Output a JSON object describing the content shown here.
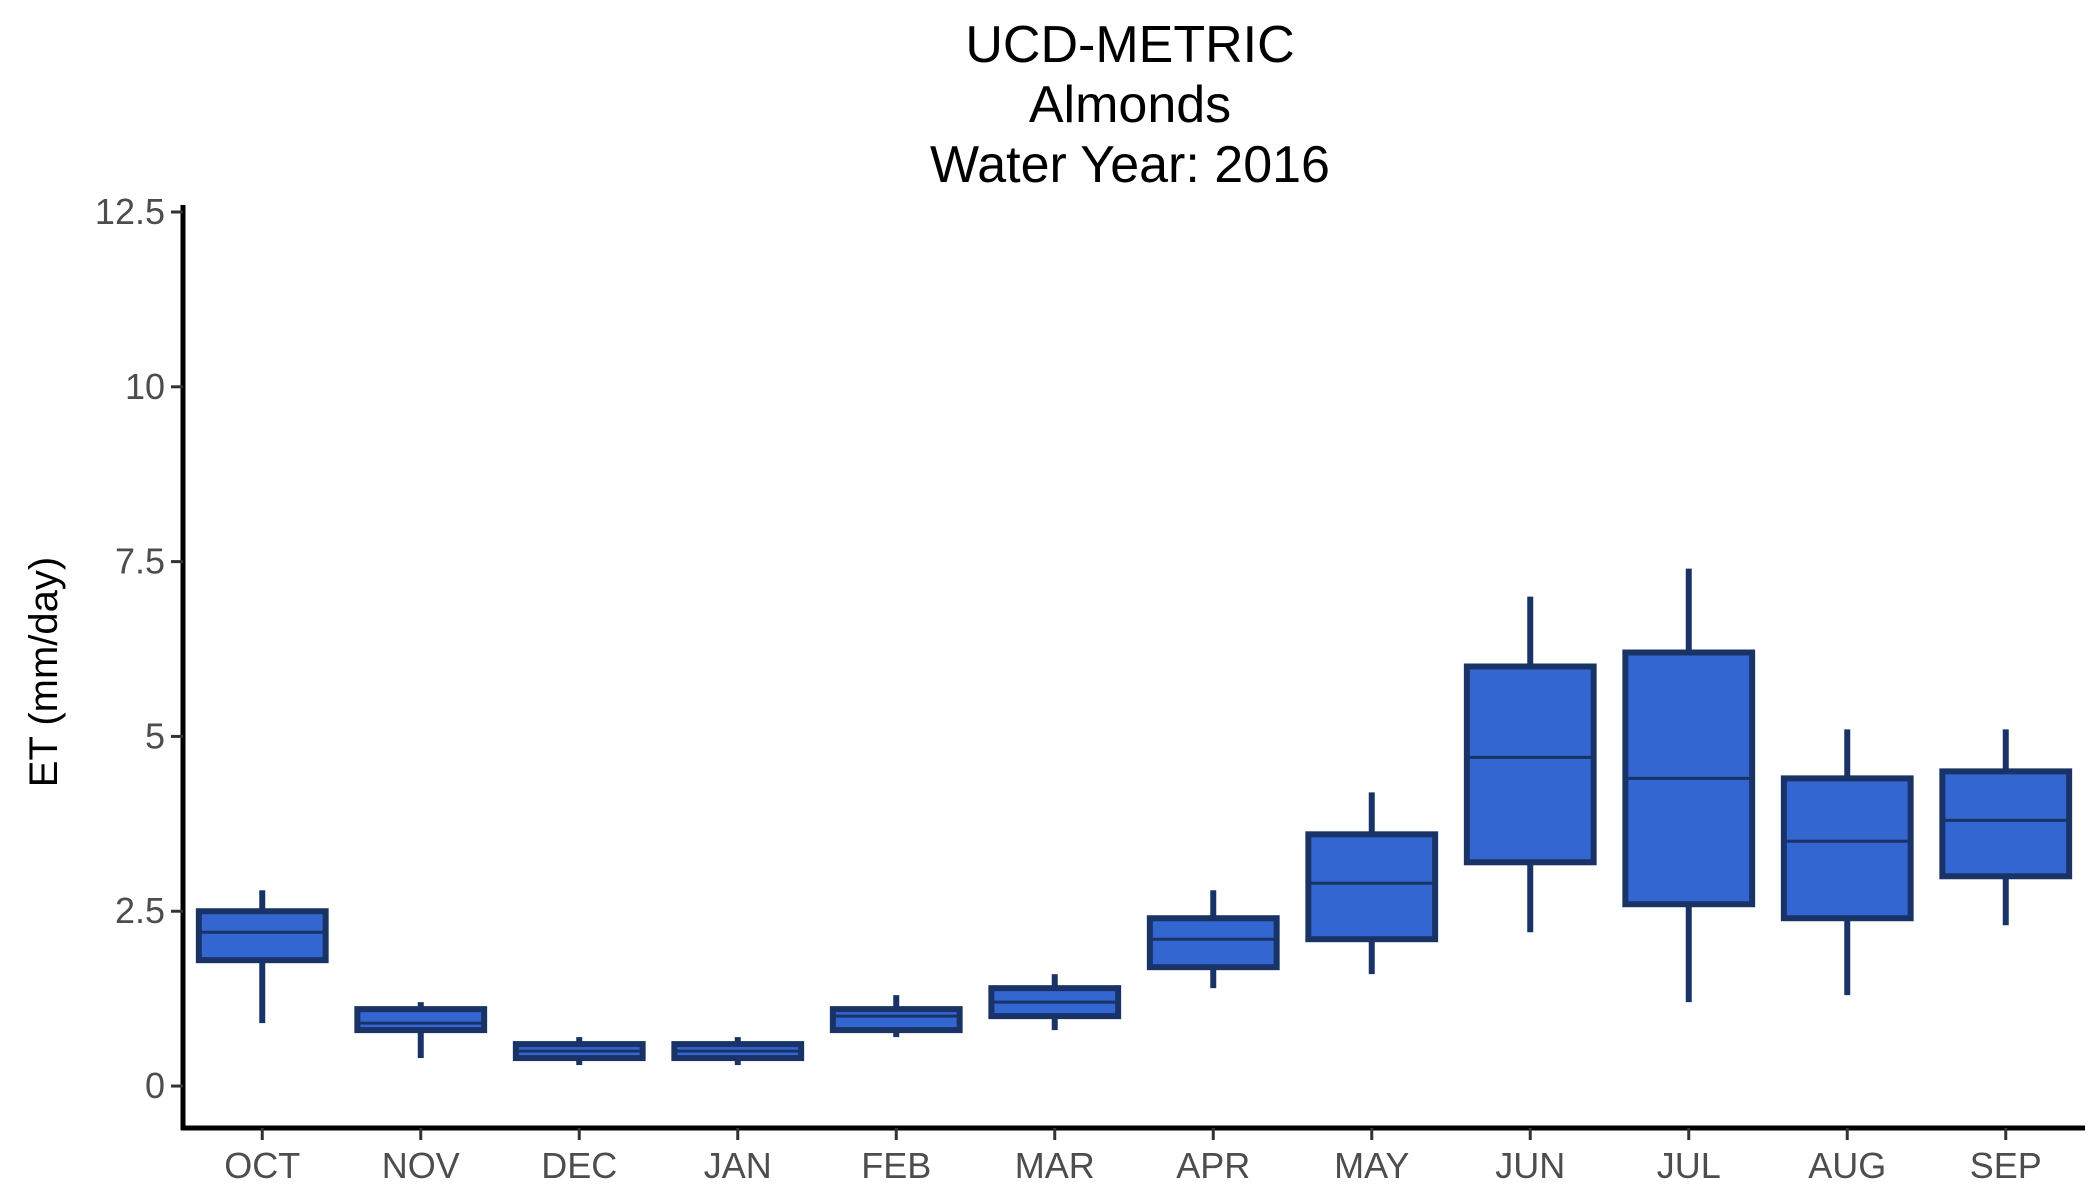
{
  "chart_data": {
    "type": "boxplot",
    "title": [
      "UCD-METRIC",
      "Almonds",
      "Water Year: 2016"
    ],
    "xlabel": "",
    "ylabel": "ET (mm/day)",
    "ylim": [
      -0.6,
      12.6
    ],
    "yticks": [
      {
        "value": 0,
        "label": "0"
      },
      {
        "value": 2.5,
        "label": "2.5"
      },
      {
        "value": 5,
        "label": "5"
      },
      {
        "value": 7.5,
        "label": "7.5"
      },
      {
        "value": 10,
        "label": "10"
      },
      {
        "value": 12.5,
        "label": "12.5"
      }
    ],
    "grid": false,
    "legend": "none",
    "colors": {
      "fill": "#3366d1",
      "stroke": "#1a3366",
      "axis": "#000000"
    },
    "categories": [
      "OCT",
      "NOV",
      "DEC",
      "JAN",
      "FEB",
      "MAR",
      "APR",
      "MAY",
      "JUN",
      "JUL",
      "AUG",
      "SEP"
    ],
    "boxes": [
      {
        "min": 0.9,
        "q1": 1.8,
        "median": 2.2,
        "q3": 2.5,
        "max": 2.8
      },
      {
        "min": 0.4,
        "q1": 0.8,
        "median": 0.9,
        "q3": 1.1,
        "max": 1.2
      },
      {
        "min": 0.3,
        "q1": 0.4,
        "median": 0.5,
        "q3": 0.6,
        "max": 0.7
      },
      {
        "min": 0.3,
        "q1": 0.4,
        "median": 0.5,
        "q3": 0.6,
        "max": 0.7
      },
      {
        "min": 0.7,
        "q1": 0.8,
        "median": 1.0,
        "q3": 1.1,
        "max": 1.3
      },
      {
        "min": 0.8,
        "q1": 1.0,
        "median": 1.2,
        "q3": 1.4,
        "max": 1.6
      },
      {
        "min": 1.4,
        "q1": 1.7,
        "median": 2.1,
        "q3": 2.4,
        "max": 2.8
      },
      {
        "min": 1.6,
        "q1": 2.1,
        "median": 2.9,
        "q3": 3.6,
        "max": 4.2
      },
      {
        "min": 2.2,
        "q1": 3.2,
        "median": 4.7,
        "q3": 6.0,
        "max": 7.0
      },
      {
        "min": 1.2,
        "q1": 2.6,
        "median": 4.4,
        "q3": 6.2,
        "max": 7.4
      },
      {
        "min": 1.3,
        "q1": 2.4,
        "median": 3.5,
        "q3": 4.4,
        "max": 5.1
      },
      {
        "min": 2.3,
        "q1": 3.0,
        "median": 3.8,
        "q3": 4.5,
        "max": 5.1
      }
    ]
  }
}
